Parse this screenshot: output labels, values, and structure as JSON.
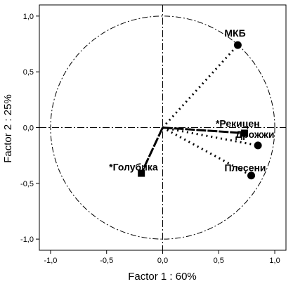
{
  "chart_data": {
    "type": "scatter",
    "xlabel": "Factor 1 : 60%",
    "ylabel": "Factor 2 : 25%",
    "xlim": [
      -1.1,
      1.1
    ],
    "ylim": [
      -1.1,
      1.1
    ],
    "x_ticks": [
      "-1,0",
      "-0,5",
      "0,0",
      "0,5",
      "1,0"
    ],
    "y_ticks": [
      "1,0",
      "0,5",
      "0,0",
      "-0,5",
      "-1,0"
    ],
    "x_tick_values": [
      -1.0,
      -0.5,
      0.0,
      0.5,
      1.0
    ],
    "y_tick_values": [
      1.0,
      0.5,
      0.0,
      -0.5,
      -1.0
    ],
    "unit_circle": true,
    "points": [
      {
        "label": "МКБ",
        "x": 0.67,
        "y": 0.74,
        "marker": "circle",
        "line": "dotted"
      },
      {
        "label": "*Рекицен",
        "x": 0.73,
        "y": -0.05,
        "marker": "square",
        "line": "solid"
      },
      {
        "label": "Дрожжи",
        "x": 0.85,
        "y": -0.16,
        "marker": "circle",
        "line": "dotted"
      },
      {
        "label": "Плесени",
        "x": 0.79,
        "y": -0.43,
        "marker": "circle",
        "line": "dotted"
      },
      {
        "label": "*Голубика",
        "x": -0.19,
        "y": -0.41,
        "marker": "square",
        "line": "solid"
      }
    ]
  }
}
